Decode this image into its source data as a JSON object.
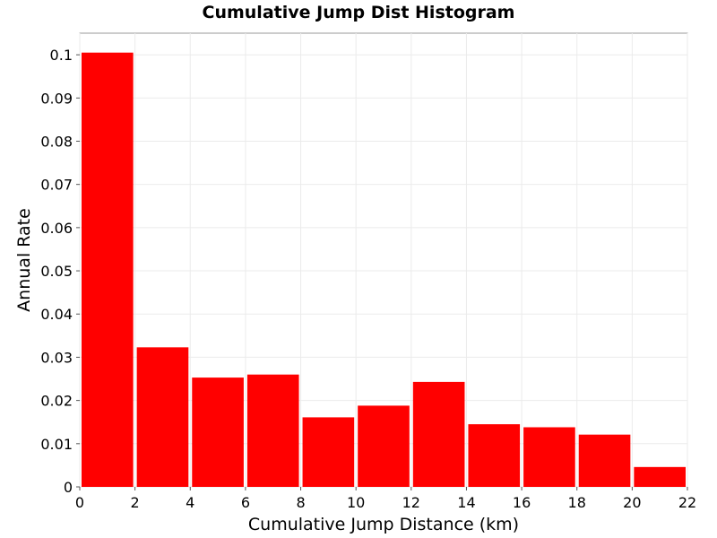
{
  "chart_data": {
    "type": "bar",
    "title": "Cumulative Jump Dist Histogram",
    "xlabel": "Cumulative Jump Distance (km)",
    "ylabel": "Annual Rate",
    "xlim": [
      0,
      22
    ],
    "ylim": [
      0,
      0.105
    ],
    "xticks": [
      "0",
      "2",
      "4",
      "6",
      "8",
      "10",
      "12",
      "14",
      "16",
      "18",
      "20",
      "22"
    ],
    "yticks": [
      "0",
      "0.01",
      "0.02",
      "0.03",
      "0.04",
      "0.05",
      "0.06",
      "0.07",
      "0.08",
      "0.09",
      "0.1"
    ],
    "bin_width": 2,
    "bars": [
      {
        "x_start": 0,
        "x_end": 2,
        "value": 0.1005
      },
      {
        "x_start": 2,
        "x_end": 4,
        "value": 0.0323
      },
      {
        "x_start": 4,
        "x_end": 6,
        "value": 0.0253
      },
      {
        "x_start": 6,
        "x_end": 8,
        "value": 0.026
      },
      {
        "x_start": 8,
        "x_end": 10,
        "value": 0.0161
      },
      {
        "x_start": 10,
        "x_end": 12,
        "value": 0.0188
      },
      {
        "x_start": 12,
        "x_end": 14,
        "value": 0.0243
      },
      {
        "x_start": 14,
        "x_end": 16,
        "value": 0.0145
      },
      {
        "x_start": 16,
        "x_end": 18,
        "value": 0.0138
      },
      {
        "x_start": 18,
        "x_end": 20,
        "value": 0.0121
      },
      {
        "x_start": 20,
        "x_end": 22,
        "value": 0.0046
      }
    ],
    "bar_color": "#ff0000",
    "grid": true,
    "legend": "none"
  }
}
